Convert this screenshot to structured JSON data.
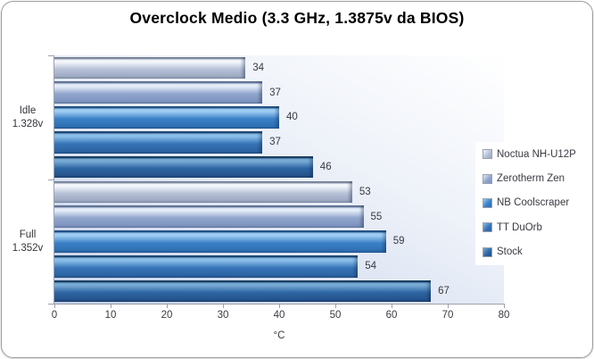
{
  "title": "Overclock Medio (3.3 GHz, 1.3875v da BIOS)",
  "chart_data": {
    "type": "bar",
    "orientation": "horizontal",
    "title": "Overclock Medio (3.3 GHz, 1.3875v da BIOS)",
    "xlabel": "°C",
    "xlim": [
      0,
      80
    ],
    "xticks": [
      0,
      10,
      20,
      30,
      40,
      50,
      60,
      70,
      80
    ],
    "grid": false,
    "legend_position": "right",
    "categories": [
      {
        "label": "Idle",
        "sub": "1.328v"
      },
      {
        "label": "Full",
        "sub": "1.352v"
      }
    ],
    "series": [
      {
        "name": "Noctua NH-U12P",
        "values": [
          34,
          53
        ],
        "color": {
          "edge": "#7f8aa0",
          "hi": "#f2f5fa",
          "mid": "#b7c2d8",
          "lo": "#9aa6bf"
        }
      },
      {
        "name": "Zerotherm Zen",
        "values": [
          37,
          55
        ],
        "color": {
          "edge": "#62779c",
          "hi": "#e3ecf8",
          "mid": "#92a6cd",
          "lo": "#7a91bc"
        }
      },
      {
        "name": "NB Coolscraper",
        "values": [
          40,
          59
        ],
        "color": {
          "edge": "#1d4f86",
          "hi": "#9dccf2",
          "mid": "#3b81c8",
          "lo": "#2d6cae"
        }
      },
      {
        "name": "TT DuOrb",
        "values": [
          37,
          54
        ],
        "color": {
          "edge": "#1a4572",
          "hi": "#8abde8",
          "mid": "#3674b8",
          "lo": "#2a609e"
        }
      },
      {
        "name": "Stock",
        "values": [
          46,
          67
        ],
        "color": {
          "edge": "#153a5e",
          "hi": "#76a9d4",
          "mid": "#2e66a4",
          "lo": "#234f88"
        }
      }
    ],
    "value_labels": true,
    "plot_bg_gradient": [
      "#ffffff",
      "#c5d1ea"
    ],
    "axis_color": "#9ba1ab",
    "text_color": "#3a3a42"
  }
}
